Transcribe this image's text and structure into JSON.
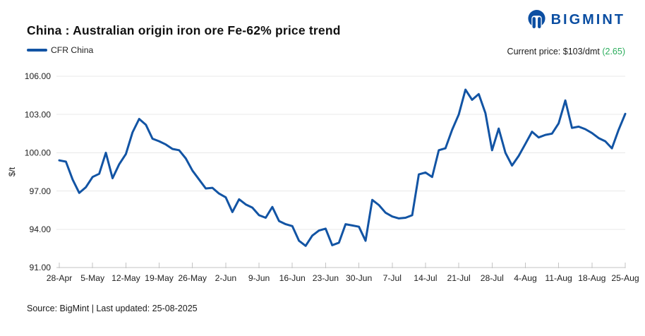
{
  "header": {
    "title": "China : Australian origin iron ore Fe-62% price trend"
  },
  "legend": {
    "series_label": "CFR China"
  },
  "logo": {
    "text": "BIGMINT"
  },
  "price_note": {
    "prefix": "Current price: $103/dmt ",
    "change": "(2.65)"
  },
  "footer": {
    "text": "Source: BigMint | Last updated: 25-08-2025"
  },
  "colors": {
    "brand_blue": "#0B4EA2",
    "series_blue": "#1254A4",
    "change_green": "#2BAD5C"
  },
  "chart_data": {
    "type": "line",
    "title": "China : Australian origin iron ore Fe-62% price trend",
    "series_name": "CFR China",
    "xlabel": "",
    "ylabel": "$/t",
    "ylim": [
      91,
      106
    ],
    "grid": "horizontal",
    "legend_position": "top-left",
    "ytick_values": [
      106,
      103,
      100,
      97,
      94,
      91
    ],
    "ytick_labels": [
      "106.00",
      "103.00",
      "100.00",
      "97.00",
      "94.00",
      "91.00"
    ],
    "xtick_every": 5,
    "xtick_labels": [
      "28-Apr",
      "5-May",
      "12-May",
      "19-May",
      "26-May",
      "2-Jun",
      "9-Jun",
      "16-Jun",
      "23-Jun",
      "30-Jun",
      "7-Jul",
      "14-Jul",
      "21-Jul",
      "28-Jul",
      "4-Aug",
      "11-Aug",
      "18-Aug",
      "25-Aug"
    ],
    "x": [
      "28-Apr",
      "29-Apr",
      "30-Apr",
      "1-May",
      "2-May",
      "5-May",
      "6-May",
      "7-May",
      "8-May",
      "9-May",
      "12-May",
      "13-May",
      "14-May",
      "15-May",
      "16-May",
      "19-May",
      "20-May",
      "21-May",
      "22-May",
      "23-May",
      "26-May",
      "27-May",
      "28-May",
      "29-May",
      "30-May",
      "2-Jun",
      "3-Jun",
      "4-Jun",
      "5-Jun",
      "6-Jun",
      "9-Jun",
      "10-Jun",
      "11-Jun",
      "12-Jun",
      "13-Jun",
      "16-Jun",
      "17-Jun",
      "18-Jun",
      "19-Jun",
      "20-Jun",
      "23-Jun",
      "24-Jun",
      "25-Jun",
      "26-Jun",
      "27-Jun",
      "30-Jun",
      "1-Jul",
      "2-Jul",
      "3-Jul",
      "4-Jul",
      "7-Jul",
      "8-Jul",
      "9-Jul",
      "10-Jul",
      "11-Jul",
      "14-Jul",
      "15-Jul",
      "16-Jul",
      "17-Jul",
      "18-Jul",
      "21-Jul",
      "22-Jul",
      "23-Jul",
      "24-Jul",
      "25-Jul",
      "28-Jul",
      "29-Jul",
      "30-Jul",
      "31-Jul",
      "1-Aug",
      "4-Aug",
      "5-Aug",
      "6-Aug",
      "7-Aug",
      "8-Aug",
      "11-Aug",
      "12-Aug",
      "13-Aug",
      "14-Aug",
      "15-Aug",
      "18-Aug",
      "19-Aug",
      "20-Aug",
      "21-Aug",
      "22-Aug",
      "25-Aug"
    ],
    "values": [
      99.4,
      99.3,
      97.9,
      96.85,
      97.3,
      98.1,
      98.35,
      100.0,
      98.0,
      99.1,
      99.9,
      101.6,
      102.65,
      102.2,
      101.1,
      100.9,
      100.65,
      100.3,
      100.2,
      99.55,
      98.6,
      97.9,
      97.2,
      97.25,
      96.8,
      96.5,
      95.35,
      96.35,
      95.95,
      95.7,
      95.1,
      94.9,
      95.75,
      94.65,
      94.4,
      94.25,
      93.1,
      92.7,
      93.5,
      93.9,
      94.05,
      92.75,
      92.95,
      94.4,
      94.3,
      94.2,
      93.1,
      96.3,
      95.9,
      95.3,
      95.0,
      94.85,
      94.9,
      95.1,
      98.3,
      98.45,
      98.1,
      100.2,
      100.35,
      101.8,
      103.0,
      104.95,
      104.15,
      104.6,
      103.1,
      100.2,
      101.9,
      100.0,
      99.0,
      99.75,
      100.7,
      101.65,
      101.2,
      101.4,
      101.5,
      102.3,
      104.1,
      101.95,
      102.05,
      101.85,
      101.55,
      101.15,
      100.9,
      100.35,
      101.8,
      103.05
    ],
    "plot": {
      "x0": 84,
      "x1": 886,
      "y0": 108,
      "y1": 379
    },
    "colors": {
      "line": "#1254A4",
      "grid": "#E8E8E8",
      "axis": "#C3C3C3",
      "tick_text": "#222222"
    }
  }
}
